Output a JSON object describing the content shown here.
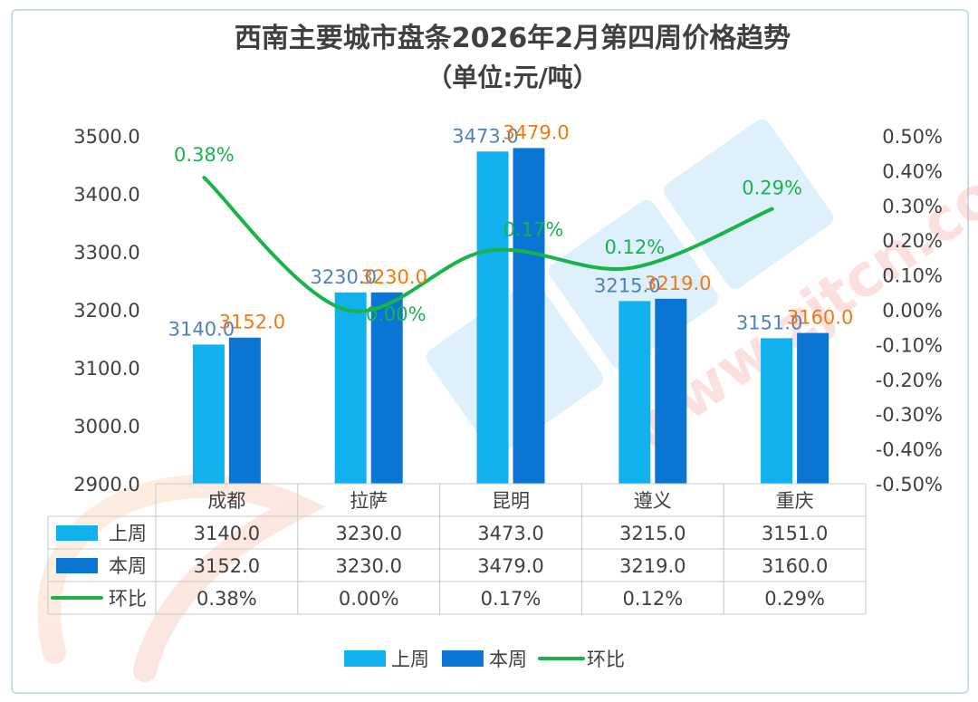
{
  "chart_data": {
    "type": "bar",
    "title": "西南主要城市盘条2026年2月第四周价格趋势",
    "subtitle": "（单位:元/吨）",
    "categories": [
      "成都",
      "拉萨",
      "昆明",
      "遵义",
      "重庆"
    ],
    "series": [
      {
        "name": "上周",
        "type": "bar",
        "axis": "left",
        "color": "#11b1ef",
        "values": [
          3140.0,
          3230.0,
          3473.0,
          3215.0,
          3151.0
        ],
        "labels": [
          "3140.0",
          "3230.0",
          "3473.0",
          "3215.0",
          "3151.0"
        ],
        "label_color": "#4f81bd"
      },
      {
        "name": "本周",
        "type": "bar",
        "axis": "left",
        "color": "#0a75d3",
        "values": [
          3152.0,
          3230.0,
          3479.0,
          3219.0,
          3160.0
        ],
        "labels": [
          "3152.0",
          "3230.0",
          "3479.0",
          "3219.0",
          "3160.0"
        ],
        "label_color": "#f07a12"
      },
      {
        "name": "环比",
        "type": "line",
        "axis": "right",
        "color": "#19b34a",
        "values": [
          0.38,
          0.0,
          0.17,
          0.12,
          0.29
        ],
        "labels": [
          "0.38%",
          "0.00%",
          "0.17%",
          "0.12%",
          "0.29%"
        ],
        "label_color": "#19b34a"
      }
    ],
    "y_left": {
      "min": 2900,
      "max": 3500,
      "step": 100,
      "ticks": [
        "2900.0",
        "3000.0",
        "3100.0",
        "3200.0",
        "3300.0",
        "3400.0",
        "3500.0"
      ]
    },
    "y_right": {
      "min": -0.5,
      "max": 0.5,
      "step": 0.1,
      "ticks": [
        "-0.50%",
        "-0.40%",
        "-0.30%",
        "-0.20%",
        "-0.10%",
        "0.00%",
        "0.10%",
        "0.20%",
        "0.30%",
        "0.40%",
        "0.50%"
      ]
    },
    "grid": false,
    "legend": "bottom",
    "data_table": {
      "rows": [
        {
          "name": "上周",
          "values": [
            "3140.0",
            "3230.0",
            "3473.0",
            "3215.0",
            "3151.0"
          ]
        },
        {
          "name": "本周",
          "values": [
            "3152.0",
            "3230.0",
            "3479.0",
            "3219.0",
            "3160.0"
          ]
        },
        {
          "name": "环比",
          "values": [
            "0.38%",
            "0.00%",
            "0.17%",
            "0.12%",
            "0.29%"
          ]
        }
      ]
    },
    "watermark": "zjtcn.com"
  }
}
